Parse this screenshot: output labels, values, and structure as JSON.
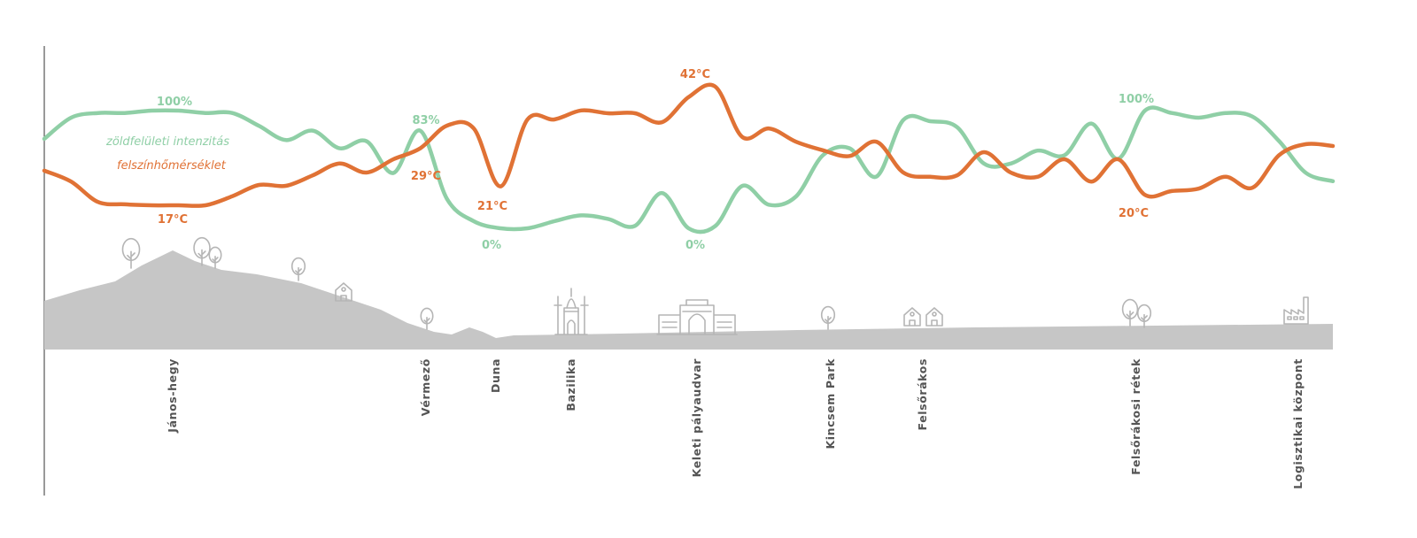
{
  "chart_data": {
    "type": "line",
    "title": "",
    "xlabel": "",
    "ylabel": "",
    "grid": false,
    "legend_placement": "top-left",
    "colors": {
      "green": "#8fcfa6",
      "temperature": "#e07235",
      "terrain": "#c6c6c6",
      "icons": "#b5b5b5",
      "labels": "#555555"
    },
    "series": [
      {
        "name": "zöldfelületi intenzitás",
        "unit": "%",
        "ylim": [
          0,
          100
        ],
        "values": [
          76,
          94,
          98,
          98,
          100,
          100,
          98,
          98,
          87,
          75,
          83,
          68,
          74,
          47,
          83,
          25,
          6,
          0,
          0,
          6,
          11,
          8,
          2,
          30,
          0,
          2,
          36,
          20,
          27,
          62,
          68,
          44,
          92,
          91,
          86,
          55,
          55,
          66,
          62,
          89,
          59,
          100,
          98,
          94,
          98,
          95,
          74,
          47,
          40
        ]
      },
      {
        "name": "felszínhőmérséklet",
        "unit": "°C",
        "ylim": [
          17,
          42
        ],
        "values": [
          24.3,
          22,
          17.7,
          17.2,
          17,
          17,
          17,
          18.9,
          21.3,
          21.1,
          23.3,
          25.8,
          23.9,
          26.7,
          29,
          33.8,
          33.2,
          21,
          35.1,
          35.1,
          37,
          36.4,
          36.4,
          34.5,
          39.8,
          42,
          31.4,
          33.2,
          30.4,
          28.6,
          27.4,
          30.4,
          23.9,
          23,
          23.3,
          28.2,
          23.9,
          23,
          26.7,
          22,
          26.7,
          19.2,
          20,
          20.5,
          23,
          20.7,
          27.6,
          29.9,
          29.5
        ]
      }
    ],
    "annotations": [
      {
        "series": 0,
        "text": "100%"
      },
      {
        "series": 0,
        "text": "83%"
      },
      {
        "series": 0,
        "text": "0%"
      },
      {
        "series": 0,
        "text": "0%"
      },
      {
        "series": 0,
        "text": "100%"
      },
      {
        "series": 1,
        "text": "17°C"
      },
      {
        "series": 1,
        "text": "29°C"
      },
      {
        "series": 1,
        "text": "21°C"
      },
      {
        "series": 1,
        "text": "42°C"
      },
      {
        "series": 1,
        "text": "20°C"
      }
    ],
    "places": [
      "János-hegy",
      "Vérmező",
      "Duna",
      "Bazilika",
      "Keleti pályaudvar",
      "Kincsem Park",
      "Felsőrákos",
      "Felsőrákosi rétek",
      "Logisztikai központ"
    ],
    "place_icons": [
      "tree-icon",
      "tree-icon",
      "tree-icon",
      "tree-icon",
      "house-icon",
      "tree-icon",
      "basilica-icon",
      "railway-station-icon",
      "tree-icon",
      "houses-icon",
      "tree-icon",
      "tree-icon",
      "factory-icon"
    ]
  }
}
